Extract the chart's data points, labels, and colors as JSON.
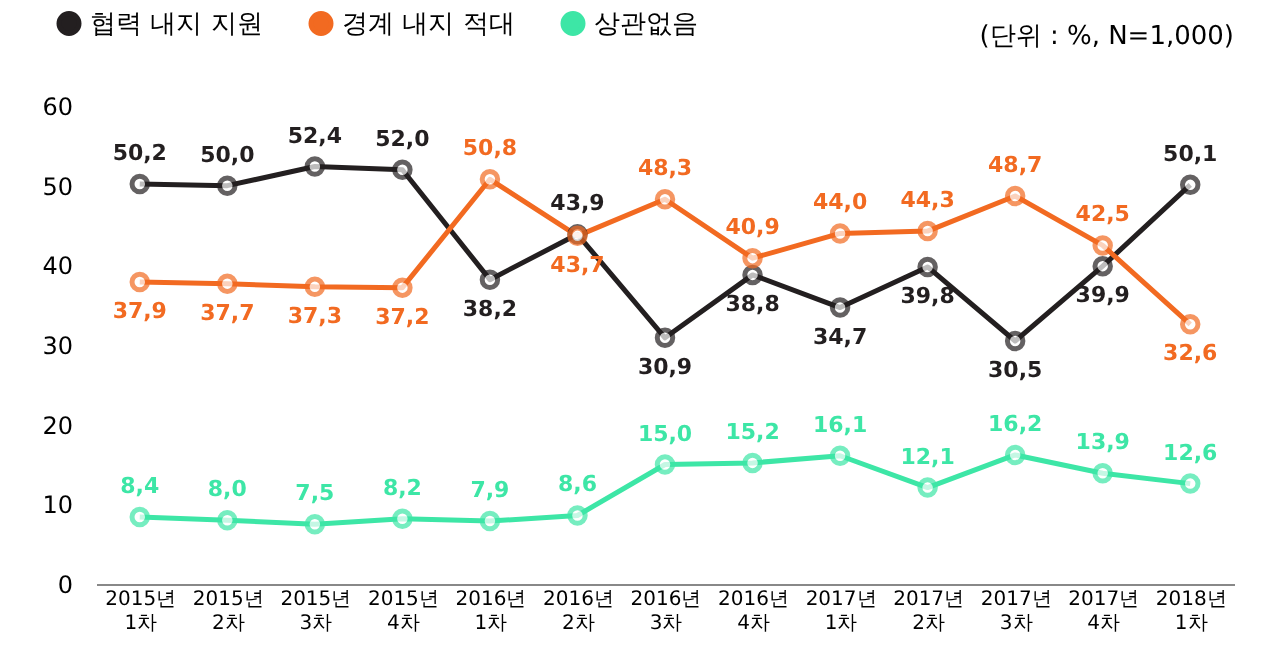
{
  "chart_data": {
    "type": "line",
    "categories": [
      "2015년 1차",
      "2015년 2차",
      "2015년 3차",
      "2015년 4차",
      "2016년 1차",
      "2016년 2차",
      "2016년 3차",
      "2016년 4차",
      "2017년 1차",
      "2017년 2차",
      "2017년 3차",
      "2017년 4차",
      "2018년 1차"
    ],
    "series": [
      {
        "name": "협력 내지 지원",
        "color": "#231f20",
        "values": [
          50.2,
          50.0,
          52.4,
          52.0,
          38.2,
          43.9,
          30.9,
          38.8,
          34.7,
          39.8,
          30.5,
          39.9,
          50.1
        ],
        "value_labels": [
          "50,2",
          "50,0",
          "52,4",
          "52,0",
          "38,2",
          "43,9",
          "30,9",
          "38,8",
          "34,7",
          "39,8",
          "30,5",
          "39,9",
          "50,1"
        ]
      },
      {
        "name": "경계 내지 적대",
        "color": "#f26a21",
        "values": [
          37.9,
          37.7,
          37.3,
          37.2,
          50.8,
          43.7,
          48.3,
          40.9,
          44.0,
          44.3,
          48.7,
          42.5,
          32.6
        ],
        "value_labels": [
          "37,9",
          "37,7",
          "37,3",
          "37,2",
          "50,8",
          "43,7",
          "48,3",
          "40,9",
          "44,0",
          "44,3",
          "48,7",
          "42,5",
          "32,6"
        ]
      },
      {
        "name": "상관없음",
        "color": "#3de6a6",
        "values": [
          8.4,
          8.0,
          7.5,
          8.2,
          7.9,
          8.6,
          15.0,
          15.2,
          16.1,
          12.1,
          16.2,
          13.9,
          12.6
        ],
        "value_labels": [
          "8,4",
          "8,0",
          "7,5",
          "8,2",
          "7,9",
          "8,6",
          "15,0",
          "15,2",
          "16,1",
          "12,1",
          "16,2",
          "13,9",
          "12,6"
        ]
      }
    ],
    "ylim": [
      0,
      60
    ],
    "yticks": [
      0,
      10,
      20,
      30,
      40,
      50,
      60
    ],
    "marker": "circle",
    "line_style": "solid",
    "grid": false,
    "legend": "top left",
    "annotations": [
      "(단위 : %, N=1,000)"
    ]
  }
}
